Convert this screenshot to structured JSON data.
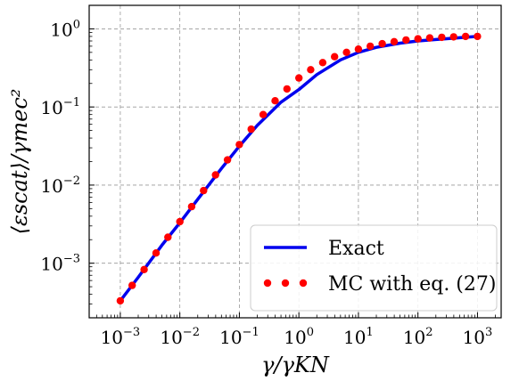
{
  "chart_data": {
    "type": "line",
    "title": "",
    "xlabel": "γ/γKN",
    "ylabel": "⟨εscat⟩/γmec²",
    "xscale": "log",
    "yscale": "log",
    "xlim": [
      0.0003,
      2500
    ],
    "ylim": [
      0.0002,
      2
    ],
    "grid": true,
    "legend_position": "lower-right",
    "x_ticks": [
      {
        "base": "10",
        "exp": "−3",
        "value": 0.001
      },
      {
        "base": "10",
        "exp": "−2",
        "value": 0.01
      },
      {
        "base": "10",
        "exp": "−1",
        "value": 0.1
      },
      {
        "base": "10",
        "exp": "0",
        "value": 1
      },
      {
        "base": "10",
        "exp": "1",
        "value": 10
      },
      {
        "base": "10",
        "exp": "2",
        "value": 100
      },
      {
        "base": "10",
        "exp": "3",
        "value": 1000
      }
    ],
    "y_ticks": [
      {
        "base": "10",
        "exp": "−3",
        "value": 0.001
      },
      {
        "base": "10",
        "exp": "−2",
        "value": 0.01
      },
      {
        "base": "10",
        "exp": "−1",
        "value": 0.1
      },
      {
        "base": "10",
        "exp": "0",
        "value": 1
      }
    ],
    "series": [
      {
        "name": "Exact",
        "style": "solid-line",
        "color": "#0000ee",
        "x": [
          0.001,
          0.002,
          0.005,
          0.01,
          0.02,
          0.05,
          0.1,
          0.2,
          0.5,
          1,
          2,
          5,
          10,
          20,
          50,
          100,
          200,
          500,
          1000
        ],
        "y": [
          0.00033,
          0.00066,
          0.0017,
          0.0033,
          0.0066,
          0.0163,
          0.0315,
          0.058,
          0.115,
          0.167,
          0.26,
          0.4,
          0.5,
          0.58,
          0.655,
          0.7,
          0.73,
          0.77,
          0.8
        ]
      },
      {
        "name": "MC with eq. (27)",
        "style": "dotted-markers",
        "color": "#ff0000",
        "x": [
          0.001,
          0.00158,
          0.00251,
          0.00398,
          0.00631,
          0.01,
          0.0158,
          0.0251,
          0.0398,
          0.0631,
          0.1,
          0.158,
          0.251,
          0.398,
          0.631,
          1,
          1.58,
          2.51,
          3.98,
          6.31,
          10,
          15.8,
          25.1,
          39.8,
          63.1,
          100,
          158,
          251,
          398,
          631,
          1000
        ],
        "y": [
          0.00033,
          0.00052,
          0.00083,
          0.00135,
          0.00215,
          0.0034,
          0.0053,
          0.0085,
          0.0135,
          0.021,
          0.033,
          0.052,
          0.08,
          0.12,
          0.17,
          0.235,
          0.3,
          0.37,
          0.44,
          0.5,
          0.55,
          0.6,
          0.645,
          0.685,
          0.72,
          0.745,
          0.765,
          0.78,
          0.79,
          0.8,
          0.8
        ]
      }
    ]
  }
}
